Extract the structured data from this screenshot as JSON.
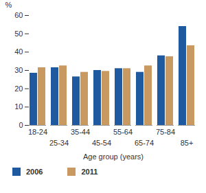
{
  "chart_data": {
    "type": "bar",
    "categories": [
      "18-24",
      "25-34",
      "35-44",
      "45-54",
      "55-64",
      "65-74",
      "75-84",
      "85+"
    ],
    "series": [
      {
        "name": "2006",
        "color": "#1f5aa0",
        "values": [
          28.5,
          31.5,
          26.5,
          30,
          31,
          29,
          38,
          54
        ]
      },
      {
        "name": "2011",
        "color": "#c89a62",
        "values": [
          31.5,
          32.5,
          29,
          29.5,
          31,
          32.5,
          37.5,
          43.5
        ]
      }
    ],
    "y_label": "%",
    "x_label": "Age group (years)",
    "ylim": [
      0,
      60
    ],
    "yticks": [
      0,
      10,
      20,
      30,
      40,
      50,
      60
    ],
    "grid": false,
    "legend": "bottom"
  }
}
